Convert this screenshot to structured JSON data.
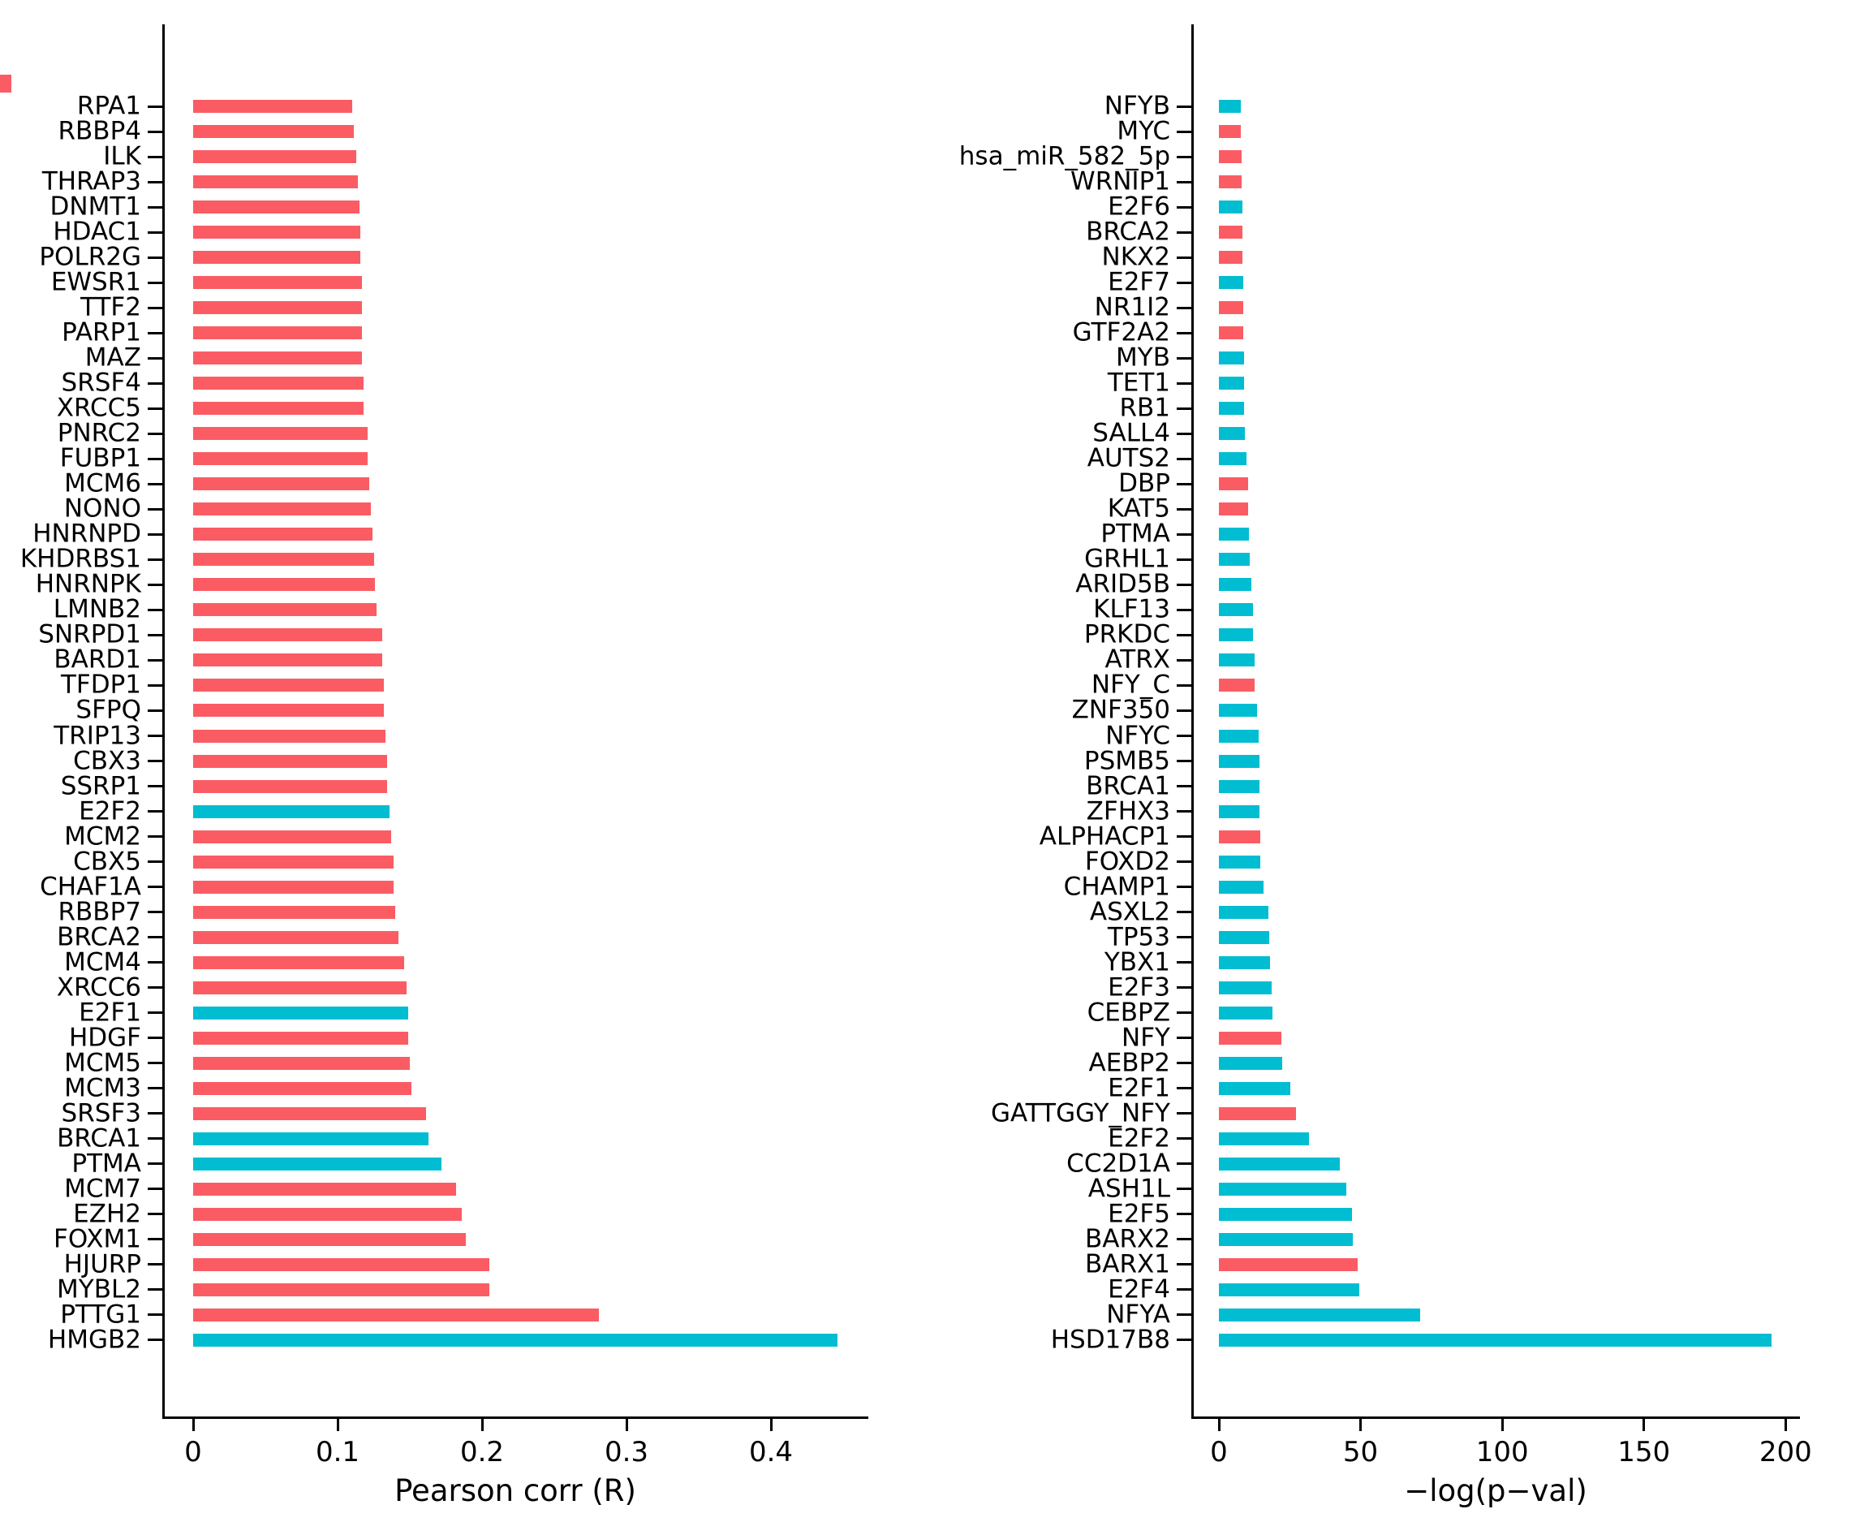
{
  "figure": {
    "background": "#ffffff"
  },
  "colors": {
    "bar_red": "#fb5c63",
    "bar_cyan": "#00bdd1",
    "axis": "#000000",
    "text": "#000000"
  },
  "stray_red_mark": {
    "present": true,
    "color": "#fb5c63"
  },
  "chart_data": [
    {
      "type": "bar",
      "orientation": "horizontal",
      "title": "",
      "xlabel": "Pearson corr (R)",
      "ylabel": "",
      "xlim": [
        0,
        0.467
      ],
      "grid": false,
      "legend": "none",
      "xticks": [
        0,
        0.1,
        0.2,
        0.3,
        0.4
      ],
      "xtick_labels": [
        "0",
        "0.1",
        "0.2",
        "0.3",
        "0.4"
      ],
      "categories": [
        "RPA1",
        "RBBP4",
        "ILK",
        "THRAP3",
        "DNMT1",
        "HDAC1",
        "POLR2G",
        "EWSR1",
        "TTF2",
        "PARP1",
        "MAZ",
        "SRSF4",
        "XRCC5",
        "PNRC2",
        "FUBP1",
        "MCM6",
        "NONO",
        "HNRNPD",
        "KHDRBS1",
        "HNRNPK",
        "LMNB2",
        "SNRPD1",
        "BARD1",
        "TFDP1",
        "SFPQ",
        "TRIP13",
        "CBX3",
        "SSRP1",
        "E2F2",
        "MCM2",
        "CBX5",
        "CHAF1A",
        "RBBP7",
        "BRCA2",
        "MCM4",
        "XRCC6",
        "E2F1",
        "HDGF",
        "MCM5",
        "MCM3",
        "SRSF3",
        "BRCA1",
        "PTMA",
        "MCM7",
        "EZH2",
        "FOXM1",
        "HJURP",
        "MYBL2",
        "PTTG1",
        "HMGB2"
      ],
      "values": [
        0.11,
        0.111,
        0.113,
        0.114,
        0.115,
        0.116,
        0.116,
        0.117,
        0.117,
        0.117,
        0.117,
        0.118,
        0.118,
        0.121,
        0.121,
        0.122,
        0.123,
        0.124,
        0.125,
        0.126,
        0.127,
        0.131,
        0.131,
        0.132,
        0.132,
        0.133,
        0.134,
        0.134,
        0.136,
        0.137,
        0.139,
        0.139,
        0.14,
        0.142,
        0.146,
        0.148,
        0.149,
        0.149,
        0.15,
        0.151,
        0.161,
        0.163,
        0.172,
        0.182,
        0.186,
        0.189,
        0.205,
        0.205,
        0.281,
        0.446
      ],
      "bar_colors": [
        "red",
        "red",
        "red",
        "red",
        "red",
        "red",
        "red",
        "red",
        "red",
        "red",
        "red",
        "red",
        "red",
        "red",
        "red",
        "red",
        "red",
        "red",
        "red",
        "red",
        "red",
        "red",
        "red",
        "red",
        "red",
        "red",
        "red",
        "red",
        "cyan",
        "red",
        "red",
        "red",
        "red",
        "red",
        "red",
        "red",
        "cyan",
        "red",
        "red",
        "red",
        "red",
        "cyan",
        "cyan",
        "red",
        "red",
        "red",
        "red",
        "red",
        "red",
        "cyan"
      ]
    },
    {
      "type": "bar",
      "orientation": "horizontal",
      "title": "",
      "xlabel": "−log(p−val)",
      "ylabel": "",
      "xlim": [
        0,
        205
      ],
      "grid": false,
      "legend": "none",
      "xticks": [
        0,
        50,
        100,
        150,
        200
      ],
      "xtick_labels": [
        "0",
        "50",
        "100",
        "150",
        "200"
      ],
      "categories": [
        "NFYB",
        "MYC",
        "hsa_miR_582_5p",
        "WRNIP1",
        "E2F6",
        "BRCA2",
        "NKX2",
        "E2F7",
        "NR1I2",
        "GTF2A2",
        "MYB",
        "TET1",
        "RB1",
        "SALL4",
        "AUTS2",
        "DBP",
        "KAT5",
        "PTMA",
        "GRHL1",
        "ARID5B",
        "KLF13",
        "PRKDC",
        "ATRX",
        "NFY_C",
        "ZNF350",
        "NFYC",
        "PSMB5",
        "BRCA1",
        "ZFHX3",
        "ALPHACP1",
        "FOXD2",
        "CHAMP1",
        "ASXL2",
        "TP53",
        "YBX1",
        "E2F3",
        "CEBPZ",
        "NFY",
        "AEBP2",
        "E2F1",
        "GATTGGY_NFY",
        "E2F2",
        "CC2D1A",
        "ASH1L",
        "E2F5",
        "BARX2",
        "BARX1",
        "E2F4",
        "NFYA",
        "HSD17B8"
      ],
      "values": [
        7.6,
        7.7,
        8.0,
        8.1,
        8.2,
        8.3,
        8.4,
        8.5,
        8.6,
        8.7,
        8.8,
        8.9,
        9.0,
        9.3,
        9.7,
        10.3,
        10.4,
        10.5,
        10.8,
        11.5,
        11.9,
        12.1,
        12.6,
        12.7,
        13.5,
        14.0,
        14.2,
        14.3,
        14.4,
        14.5,
        14.6,
        15.7,
        17.5,
        17.7,
        18.1,
        18.7,
        19.0,
        22.0,
        22.4,
        25.1,
        27.1,
        31.7,
        42.7,
        45.0,
        46.9,
        47.2,
        49.1,
        49.5,
        71.0,
        195.0
      ],
      "bar_colors": [
        "cyan",
        "red",
        "red",
        "red",
        "cyan",
        "red",
        "red",
        "cyan",
        "red",
        "red",
        "cyan",
        "cyan",
        "cyan",
        "cyan",
        "cyan",
        "red",
        "red",
        "cyan",
        "cyan",
        "cyan",
        "cyan",
        "cyan",
        "cyan",
        "red",
        "cyan",
        "cyan",
        "cyan",
        "cyan",
        "cyan",
        "red",
        "cyan",
        "cyan",
        "cyan",
        "cyan",
        "cyan",
        "cyan",
        "cyan",
        "red",
        "cyan",
        "cyan",
        "red",
        "cyan",
        "cyan",
        "cyan",
        "cyan",
        "cyan",
        "red",
        "cyan",
        "cyan",
        "cyan"
      ]
    }
  ]
}
